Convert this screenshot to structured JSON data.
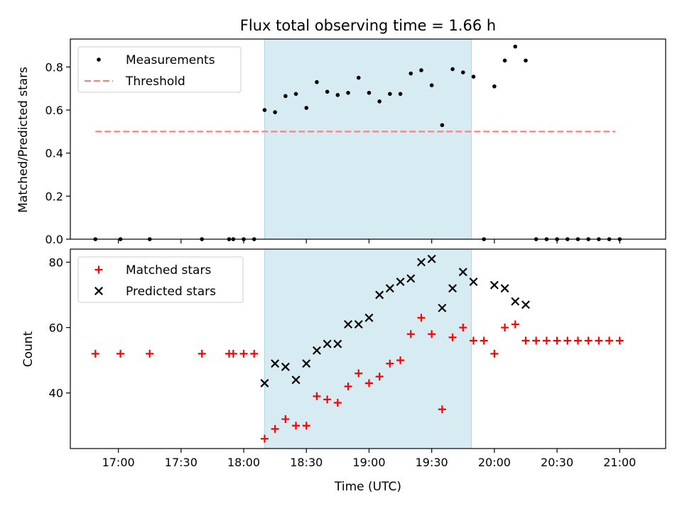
{
  "chart_data": {
    "type": "scatter",
    "title": "Flux total observing time = 1.66 h",
    "xlabel": "Time (UTC)",
    "x_ticks": [
      "17:00",
      "17:30",
      "18:00",
      "18:30",
      "19:00",
      "19:30",
      "20:00",
      "20:30",
      "21:00"
    ],
    "xlim": [
      "16:37",
      "21:22"
    ],
    "highlight_span": [
      "18:10",
      "19:49"
    ],
    "panels": [
      {
        "ylabel": "Matched/Predicted stars",
        "ylim": [
          0,
          0.93
        ],
        "y_ticks": [
          "0.0",
          "0.2",
          "0.4",
          "0.6",
          "0.8"
        ],
        "legend_position": "upper-left",
        "series": [
          {
            "name": "Measurements",
            "marker": "dot",
            "color": "#000000",
            "x": [
              "16:49",
              "17:01",
              "17:15",
              "17:40",
              "17:53",
              "17:55",
              "18:00",
              "18:05",
              "18:10",
              "18:15",
              "18:20",
              "18:25",
              "18:30",
              "18:35",
              "18:40",
              "18:45",
              "18:50",
              "18:55",
              "19:00",
              "19:05",
              "19:10",
              "19:15",
              "19:20",
              "19:25",
              "19:30",
              "19:35",
              "19:40",
              "19:45",
              "19:50",
              "19:55",
              "20:00",
              "20:05",
              "20:10",
              "20:15",
              "20:20",
              "20:25",
              "20:30",
              "20:35",
              "20:40",
              "20:45",
              "20:50",
              "20:55",
              "21:00"
            ],
            "y": [
              0,
              0,
              0,
              0,
              0,
              0,
              0,
              0,
              0.6,
              0.59,
              0.665,
              0.675,
              0.61,
              0.73,
              0.685,
              0.67,
              0.68,
              0.75,
              0.68,
              0.64,
              0.675,
              0.675,
              0.77,
              0.785,
              0.715,
              0.53,
              0.79,
              0.775,
              0.755,
              0,
              0.71,
              0.83,
              0.895,
              0.83,
              0,
              0,
              0,
              0,
              0,
              0,
              0,
              0,
              0
            ]
          },
          {
            "name": "Threshold",
            "marker": "dashed-line",
            "color": "#ff7f7f",
            "x": [
              "16:49",
              "20:58"
            ],
            "y": [
              0.5,
              0.5
            ]
          }
        ]
      },
      {
        "ylabel": "Count",
        "ylim": [
          23,
          84
        ],
        "y_ticks": [
          "40",
          "60",
          "80"
        ],
        "legend_position": "upper-left",
        "series": [
          {
            "name": "Matched stars",
            "marker": "plus",
            "color": "#ff0000",
            "x": [
              "16:49",
              "17:01",
              "17:15",
              "17:40",
              "17:53",
              "17:55",
              "18:00",
              "18:05",
              "18:10",
              "18:15",
              "18:20",
              "18:25",
              "18:30",
              "18:35",
              "18:40",
              "18:45",
              "18:50",
              "18:55",
              "19:00",
              "19:05",
              "19:10",
              "19:15",
              "19:20",
              "19:25",
              "19:30",
              "19:35",
              "19:40",
              "19:45",
              "19:50",
              "19:55",
              "20:00",
              "20:05",
              "20:10",
              "20:15",
              "20:20",
              "20:25",
              "20:30",
              "20:35",
              "20:40",
              "20:45",
              "20:50",
              "20:55",
              "21:00"
            ],
            "y": [
              52,
              52,
              52,
              52,
              52,
              52,
              52,
              52,
              26,
              29,
              32,
              30,
              30,
              39,
              38,
              37,
              42,
              46,
              43,
              45,
              49,
              50,
              58,
              63,
              58,
              35,
              57,
              60,
              56,
              56,
              52,
              60,
              61,
              56,
              56,
              56,
              56,
              56,
              56,
              56,
              56,
              56,
              56
            ]
          },
          {
            "name": "Predicted stars",
            "marker": "x",
            "color": "#000000",
            "x": [
              "18:10",
              "18:15",
              "18:20",
              "18:25",
              "18:30",
              "18:35",
              "18:40",
              "18:45",
              "18:50",
              "18:55",
              "19:00",
              "19:05",
              "19:10",
              "19:15",
              "19:20",
              "19:25",
              "19:30",
              "19:35",
              "19:40",
              "19:45",
              "19:50",
              "20:00",
              "20:05",
              "20:10",
              "20:15"
            ],
            "y": [
              43,
              49,
              48,
              44,
              49,
              53,
              55,
              55,
              61,
              61,
              63,
              70,
              72,
              74,
              75,
              80,
              81,
              66,
              72,
              77,
              74,
              73,
              72,
              68,
              67
            ]
          }
        ]
      }
    ]
  }
}
